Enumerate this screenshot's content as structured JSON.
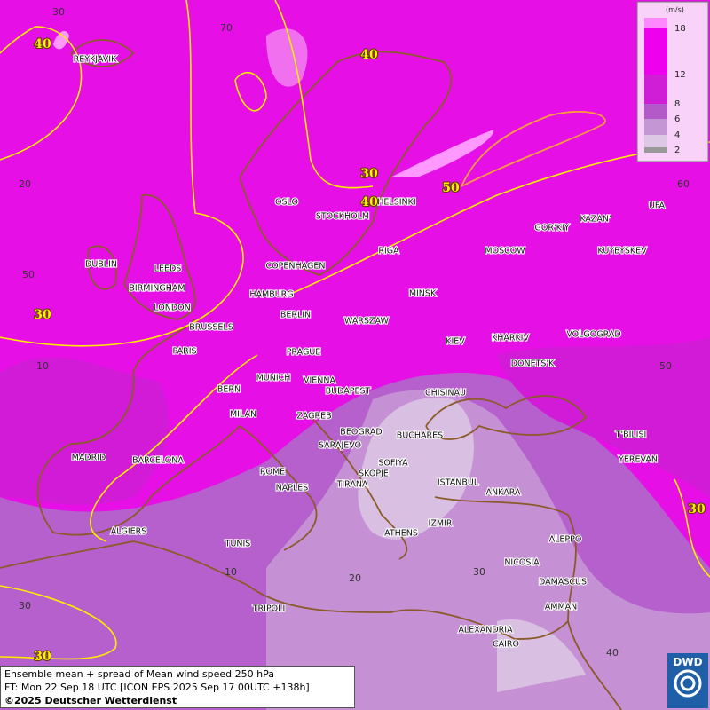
{
  "legend": {
    "unit": "(m/s)",
    "levels": [
      18,
      12,
      8,
      6,
      4,
      2
    ]
  },
  "contour_labels": [
    40,
    40,
    30,
    40,
    50,
    30,
    30,
    30
  ],
  "grid_labels": [
    30,
    70,
    60,
    20,
    50,
    10,
    50,
    30,
    10,
    20,
    30,
    40
  ],
  "cities": [
    "REYKJAVIK",
    "OSLO",
    "HELSINKI",
    "STOCKHOLM",
    "RIGA",
    "KAZAN'",
    "UFA",
    "GOR'KIY",
    "MOSCOW",
    "KUYBYSKEV",
    "DUBLIN",
    "LEEDS",
    "BIRMINGHAM",
    "LONDON",
    "COPENHAGEN",
    "HAMBURG",
    "BERLIN",
    "MINSK",
    "BRUSSELS",
    "WARSZAW",
    "KIEV",
    "KHARKIV",
    "VOLGOGRAD",
    "PARIS",
    "PRAGUE",
    "DONETS'K",
    "BERN",
    "MUNICH",
    "VIENNA",
    "BUDAPEST",
    "CHISINAU",
    "MILAN",
    "ZAGREB",
    "BEOGRAD",
    "BUCHARES",
    "T'BILISI",
    "MADRID",
    "BARCELONA",
    "SARAJEVO",
    "SOFIYA",
    "YEREVAN",
    "ROME",
    "SKOPJE",
    "ISTANBUL",
    "NAPLES",
    "TIRANA",
    "ANKARA",
    "ALGIERS",
    "IZMIR",
    "ATHENS",
    "TUNIS",
    "ALEPPO",
    "NICOSIA",
    "DAMASCUS",
    "TRIPOLI",
    "AMMAN",
    "ALEXANDRIA",
    "CAIRO"
  ],
  "footer": {
    "line1": "Ensemble mean + spread of Mean wind speed 250 hPa",
    "line2": "FT: Mon 22 Sep 18 UTC [ICON EPS 2025 Sep 17 00UTC +138h]",
    "line3": "©2025 Deutscher Wetterdienst"
  },
  "logo": "DWD"
}
